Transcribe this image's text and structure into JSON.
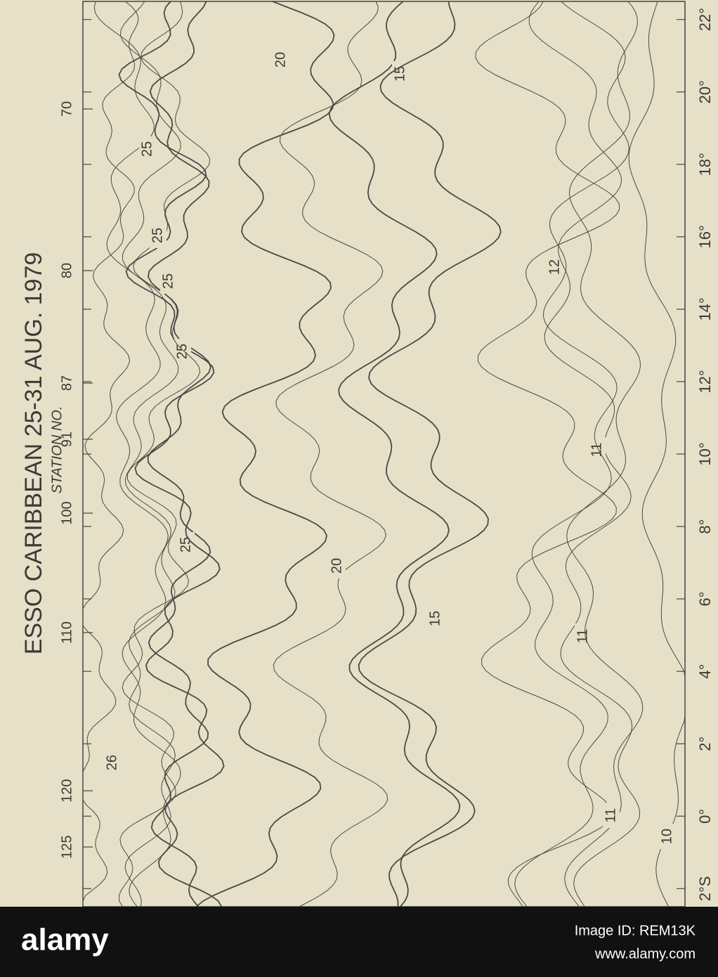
{
  "chart_data": {
    "type": "contour",
    "title": "ESSO CARIBBEAN   25-31  AUG. 1979",
    "x_label": "STATION NO.",
    "stations": [
      70,
      80,
      87,
      91,
      100,
      110,
      120,
      125
    ],
    "ylim": [
      -2.5,
      22.5
    ],
    "yticks": [
      {
        "value": -2,
        "label": "2°S"
      },
      {
        "value": 0,
        "label": "0°"
      },
      {
        "value": 2,
        "label": "2°"
      },
      {
        "value": 4,
        "label": "4°"
      },
      {
        "value": 6,
        "label": "6°"
      },
      {
        "value": 8,
        "label": "8°"
      },
      {
        "value": 10,
        "label": "10°"
      },
      {
        "value": 12,
        "label": "12°"
      },
      {
        "value": 14,
        "label": "14°"
      },
      {
        "value": 16,
        "label": "16°"
      },
      {
        "value": 18,
        "label": "18°"
      },
      {
        "value": 20,
        "label": "20°"
      },
      {
        "value": 22,
        "label": "22°"
      }
    ],
    "contour_labels": [
      26,
      25,
      25,
      25,
      25,
      25,
      20,
      20,
      15,
      15,
      12,
      11,
      11,
      11,
      10
    ]
  },
  "watermark": {
    "logo": "alamy",
    "image_id": "Image ID: REM13K",
    "url": "www.alamy.com"
  }
}
